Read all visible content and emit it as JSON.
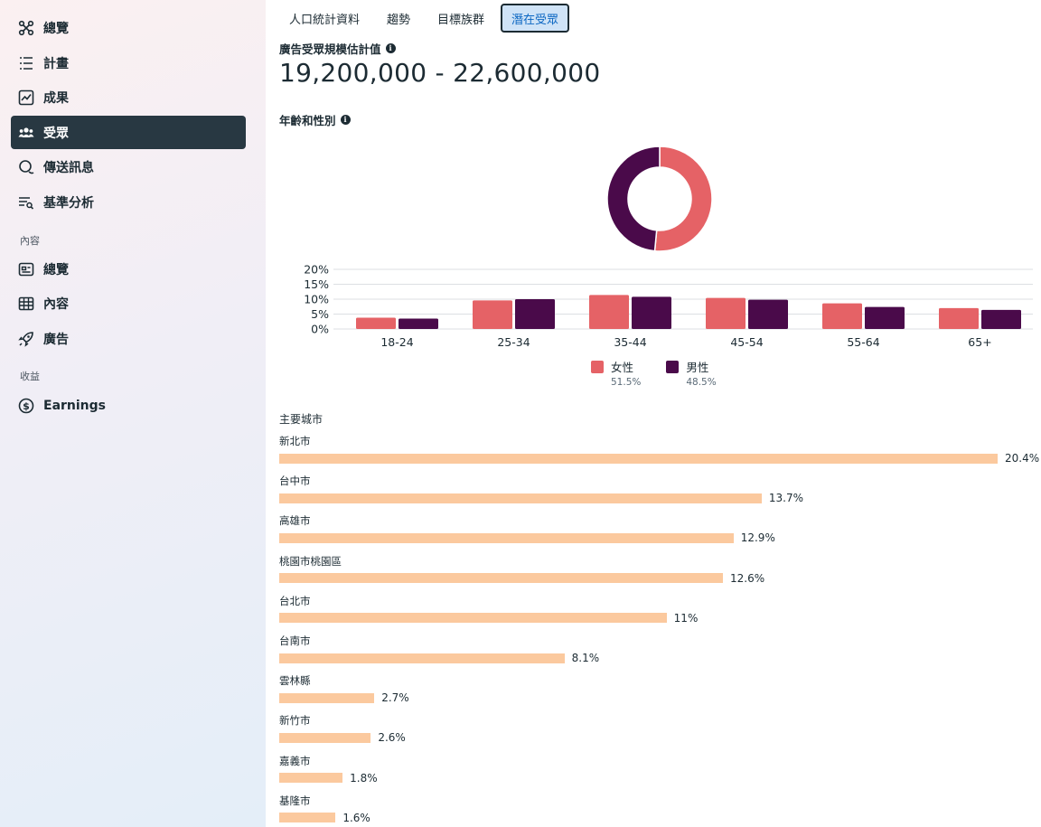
{
  "sidebar": {
    "items_top": [
      {
        "label": "總覽",
        "icon": "hub-icon"
      },
      {
        "label": "計畫",
        "icon": "list-icon"
      },
      {
        "label": "成果",
        "icon": "chart-line-icon"
      },
      {
        "label": "受眾",
        "icon": "people-icon",
        "active": true
      },
      {
        "label": "傳送訊息",
        "icon": "chat-icon"
      },
      {
        "label": "基準分析",
        "icon": "filter-search-icon"
      }
    ],
    "section_content": "內容",
    "items_content": [
      {
        "label": "總覽",
        "icon": "card-icon"
      },
      {
        "label": "內容",
        "icon": "table-icon"
      },
      {
        "label": "廣告",
        "icon": "rocket-icon"
      }
    ],
    "section_revenue": "收益",
    "items_revenue": [
      {
        "label": "Earnings",
        "icon": "dollar-icon"
      }
    ]
  },
  "tabs": [
    "人口統計資料",
    "趨勢",
    "目標族群",
    "潛在受眾"
  ],
  "active_tab": 3,
  "audience": {
    "estimate_label": "廣告受眾規模估計值",
    "estimate_value": "19,200,000 - 22,600,000"
  },
  "age_gender": {
    "label": "年齡和性別"
  },
  "colors": {
    "female": "#e56266",
    "male": "#4a0a4a",
    "city_bar": "#fbc99e"
  },
  "chart_data": [
    {
      "type": "pie",
      "donut": true,
      "categories": [
        "女性",
        "男性"
      ],
      "values": [
        51.5,
        48.5
      ]
    },
    {
      "type": "bar",
      "categories": [
        "18-24",
        "25-34",
        "35-44",
        "45-54",
        "55-64",
        "65+"
      ],
      "series": [
        {
          "name": "女性",
          "values": [
            3.8,
            9.6,
            11.4,
            10.4,
            8.6,
            7.0
          ]
        },
        {
          "name": "男性",
          "values": [
            3.5,
            10.0,
            10.8,
            9.8,
            7.4,
            6.4
          ]
        }
      ],
      "ylim": [
        0,
        20
      ],
      "yticks": [
        "0%",
        "5%",
        "10%",
        "15%",
        "20%"
      ],
      "grid": true
    },
    {
      "type": "bar",
      "orientation": "horizontal",
      "title": "主要城市",
      "categories": [
        "新北市",
        "台中市",
        "高雄市",
        "桃園市桃園區",
        "台北市",
        "台南市",
        "雲林縣",
        "新竹市",
        "嘉義市",
        "基隆市"
      ],
      "values": [
        20.4,
        13.7,
        12.9,
        12.6,
        11,
        8.1,
        2.7,
        2.6,
        1.8,
        1.6
      ],
      "labels": [
        "20.4%",
        "13.7%",
        "12.9%",
        "12.6%",
        "11%",
        "8.1%",
        "2.7%",
        "2.6%",
        "1.8%",
        "1.6%"
      ]
    }
  ],
  "legend": [
    {
      "name": "女性",
      "pct": "51.5%"
    },
    {
      "name": "男性",
      "pct": "48.5%"
    }
  ]
}
